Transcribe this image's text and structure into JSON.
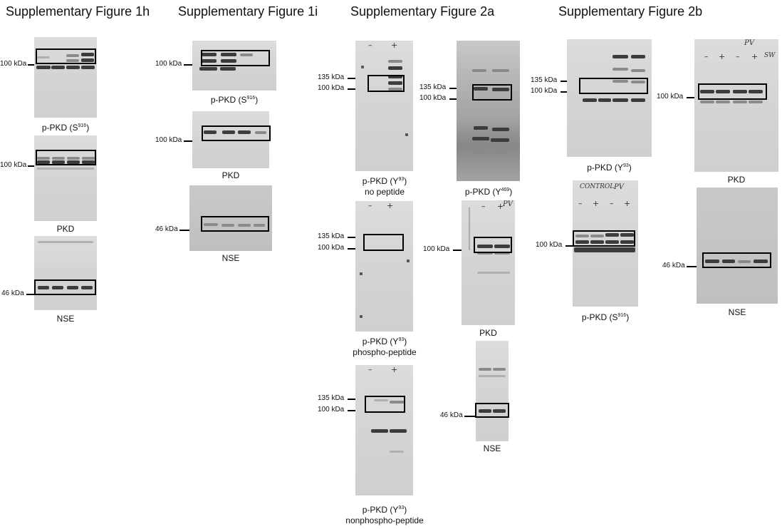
{
  "titles": {
    "fig1h": "Supplementary Figure 1h",
    "fig1i": "Supplementary Figure 1i",
    "fig2a": "Supplementary Figure 2a",
    "fig2b": "Supplementary Figure 2b"
  },
  "markers": {
    "kda100": "100 kDa",
    "kda135": "135 kDa",
    "kda46": "46 kDa"
  },
  "captions": {
    "ppkd_s916_main": "p-PKD (S",
    "sup_916": "916",
    "close_paren": ")",
    "pkd": "PKD",
    "nse": "NSE",
    "ppkd_y93_main": "p-PKD (Y",
    "sup_93": "93",
    "ppkd_y469_main": "p-PKD (Y",
    "sup_469": "469",
    "no_peptide": "no peptide",
    "phospho_peptide": "phospho-peptide",
    "nonphospho_peptide": "nonphospho-peptide"
  },
  "handwriting": {
    "minus": "–",
    "plus": "+",
    "pv": "PV",
    "control": "CONTROL",
    "sw": "SW"
  }
}
